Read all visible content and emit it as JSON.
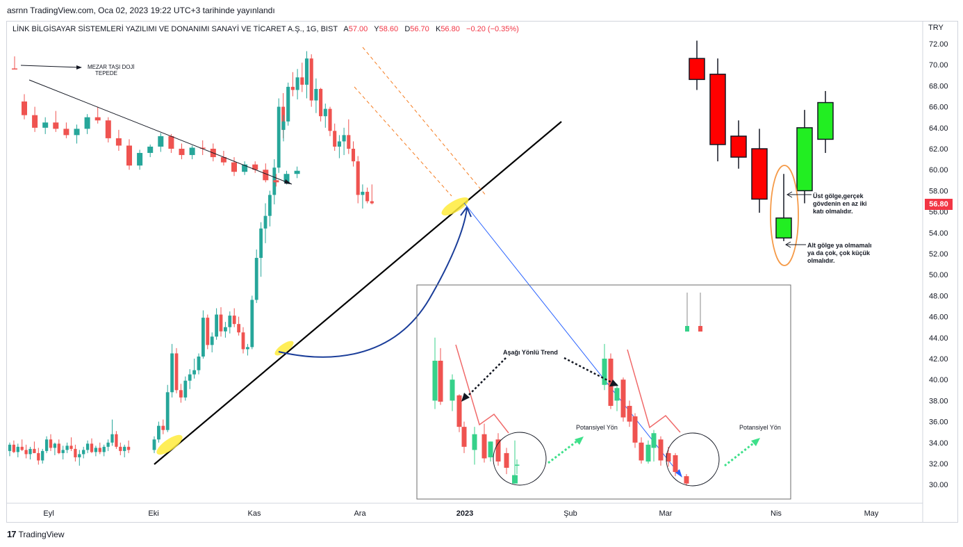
{
  "header": {
    "published_line": "asrnn TradingView.com, Oca 02, 2023 19:22 UTC+3 tarihinde yayınlandı"
  },
  "symbol_bar": {
    "name": "LİNK BİLGİSAYAR SİSTEMLERİ YAZILIMI VE DONANIMI SANAYİ VE TİCARET A.Ş., 1G, BIST",
    "open_label": "A",
    "open_value": "57.00",
    "high_label": "Y",
    "high_value": "58.60",
    "low_label": "D",
    "low_value": "56.70",
    "close_label": "K",
    "close_value": "56.80",
    "change": "−0.20 (−0.35%)"
  },
  "price_axis": {
    "currency": "TRY",
    "last_price": "56.80"
  },
  "footer": {
    "logo": "17",
    "brand": "TradingView"
  },
  "colors": {
    "up": "#26a69a",
    "down": "#ef5350",
    "annotation_red": "#ff0000",
    "annotation_green": "#22ee22",
    "trendline": "#000000",
    "curve": "#1a3d99",
    "projection": "#2962ff",
    "channel": "#f57c20",
    "highlight": "#ffeb3b"
  },
  "chart_data": {
    "type": "candlestick",
    "timeframe": "1G",
    "x_tick_labels": [
      "Eyl",
      "Eki",
      "Kas",
      "Ara",
      "2023",
      "Şub",
      "Mar",
      "Nis",
      "May"
    ],
    "y_tick_labels": [
      "72.00",
      "70.00",
      "68.00",
      "66.00",
      "64.00",
      "62.00",
      "60.00",
      "58.00",
      "56.00",
      "54.00",
      "52.00",
      "50.00",
      "48.00",
      "46.00",
      "44.00",
      "42.00",
      "40.00",
      "38.00",
      "36.00",
      "34.00",
      "32.00",
      "30.00"
    ],
    "ylim": [
      29,
      74
    ],
    "last_price": 56.8,
    "series": [
      {
        "segment": "sep-oct-consolidation",
        "ohlc": [
          [
            33.2,
            34.0,
            32.7,
            33.8
          ],
          [
            33.8,
            34.2,
            33.0,
            33.1
          ],
          [
            33.1,
            33.9,
            32.6,
            33.6
          ],
          [
            33.6,
            34.3,
            33.2,
            33.3
          ],
          [
            33.3,
            33.8,
            32.5,
            32.9
          ],
          [
            32.9,
            33.6,
            32.4,
            33.4
          ],
          [
            33.4,
            34.1,
            33.0,
            33.0
          ],
          [
            33.0,
            33.5,
            31.9,
            32.3
          ],
          [
            32.3,
            33.4,
            32.0,
            33.2
          ],
          [
            33.2,
            34.6,
            33.0,
            34.3
          ],
          [
            34.3,
            34.8,
            33.2,
            33.5
          ],
          [
            33.5,
            34.0,
            32.8,
            33.9
          ],
          [
            33.9,
            34.3,
            32.9,
            33.0
          ],
          [
            33.0,
            33.7,
            32.4,
            33.3
          ],
          [
            33.3,
            34.0,
            33.0,
            33.7
          ],
          [
            33.7,
            34.5,
            33.2,
            33.4
          ],
          [
            33.4,
            33.8,
            32.2,
            32.6
          ],
          [
            32.6,
            33.3,
            31.8,
            32.9
          ],
          [
            32.9,
            33.6,
            32.5,
            33.3
          ],
          [
            33.3,
            34.2,
            33.0,
            33.9
          ],
          [
            33.9,
            34.4,
            33.0,
            33.1
          ],
          [
            33.1,
            33.7,
            32.7,
            33.5
          ],
          [
            33.5,
            34.0,
            32.9,
            33.1
          ],
          [
            33.1,
            33.8,
            32.7,
            33.6
          ],
          [
            33.6,
            34.3,
            33.2,
            34.0
          ],
          [
            34.0,
            36.2,
            33.7,
            34.8
          ],
          [
            34.8,
            35.1,
            33.4,
            33.6
          ],
          [
            33.6,
            34.0,
            32.8,
            33.2
          ],
          [
            33.2,
            33.8,
            32.6,
            33.6
          ],
          [
            33.6,
            34.2,
            33.0,
            33.3
          ]
        ]
      },
      {
        "segment": "oct-nov-rally",
        "ohlc": [
          [
            33.3,
            34.6,
            33.0,
            34.3
          ],
          [
            34.3,
            36.0,
            34.0,
            35.6
          ],
          [
            35.6,
            36.2,
            34.8,
            35.2
          ],
          [
            35.2,
            39.5,
            35.0,
            38.8
          ],
          [
            38.8,
            43.4,
            38.3,
            42.5
          ],
          [
            42.5,
            43.0,
            38.7,
            39.0
          ],
          [
            39.0,
            39.6,
            37.8,
            38.3
          ],
          [
            38.3,
            40.3,
            38.0,
            39.9
          ],
          [
            39.9,
            41.0,
            39.1,
            40.5
          ],
          [
            40.5,
            42.0,
            40.1,
            40.9
          ],
          [
            40.9,
            42.5,
            40.5,
            42.2
          ],
          [
            42.2,
            46.6,
            42.0,
            45.9
          ],
          [
            45.9,
            46.2,
            42.9,
            43.3
          ],
          [
            43.3,
            44.5,
            42.6,
            44.1
          ],
          [
            44.1,
            46.8,
            43.8,
            46.2
          ],
          [
            46.2,
            46.9,
            44.1,
            44.6
          ],
          [
            44.6,
            45.5,
            44.0,
            45.0
          ],
          [
            45.0,
            46.5,
            44.4,
            46.1
          ],
          [
            46.1,
            46.8,
            45.0,
            45.3
          ],
          [
            45.3,
            46.0,
            44.2,
            44.5
          ],
          [
            44.5,
            45.0,
            42.5,
            42.9
          ],
          [
            42.9,
            43.4,
            42.3,
            43.1
          ],
          [
            43.1,
            48.0,
            42.9,
            47.6
          ],
          [
            47.6,
            52.4,
            47.3,
            51.6
          ],
          [
            51.6,
            55.0,
            49.8,
            54.4
          ],
          [
            54.4,
            56.8,
            53.0,
            55.6
          ],
          [
            55.6,
            58.0,
            54.6,
            57.6
          ],
          [
            57.6,
            61.0,
            56.7,
            60.2
          ],
          [
            60.2,
            66.8,
            59.7,
            66.0
          ],
          [
            66.0,
            67.3,
            63.0,
            63.8
          ]
        ]
      },
      {
        "segment": "dec-top-and-decline",
        "ohlc": [
          [
            63.8,
            65.2,
            62.7,
            64.6
          ],
          [
            64.6,
            68.3,
            64.2,
            67.9
          ],
          [
            67.9,
            69.3,
            67.0,
            67.6
          ],
          [
            67.6,
            69.6,
            66.7,
            68.8
          ],
          [
            68.8,
            70.2,
            67.4,
            68.1
          ],
          [
            68.1,
            71.3,
            66.8,
            70.6
          ],
          [
            70.6,
            71.0,
            66.0,
            66.6
          ],
          [
            66.6,
            68.7,
            65.4,
            67.7
          ],
          [
            67.7,
            67.8,
            64.6,
            65.1
          ],
          [
            65.1,
            66.3,
            64.0,
            65.8
          ],
          [
            65.8,
            66.0,
            63.2,
            63.7
          ],
          [
            63.7,
            64.4,
            61.8,
            62.2
          ],
          [
            62.2,
            63.3,
            61.1,
            62.7
          ],
          [
            62.7,
            64.0,
            61.4,
            63.3
          ],
          [
            63.3,
            64.8,
            61.5,
            62.0
          ],
          [
            62.0,
            62.7,
            60.3,
            60.8
          ],
          [
            60.8,
            61.3,
            56.8,
            57.6
          ],
          [
            57.6,
            58.6,
            56.3,
            57.9
          ],
          [
            57.9,
            58.3,
            56.8,
            57.0
          ],
          [
            57.0,
            58.6,
            56.7,
            56.8
          ]
        ]
      }
    ],
    "annotations": {
      "gravestone_label": "MEZAR TAŞI DOJİ\nTEPEDE",
      "upper_shadow_note": "Üst gölge,gerçek\ngövdenin en az iki\nkatı olmalıdır.",
      "lower_shadow_note": "Alt gölge ya olmamalı\nya da çok, çok küçük\nolmalıdır.",
      "downtrend_label": "Aşağı Yönlü Trend",
      "potential_label_1": "Potansiyel Yön",
      "potential_label_2": "Potansiyel Yön"
    }
  }
}
